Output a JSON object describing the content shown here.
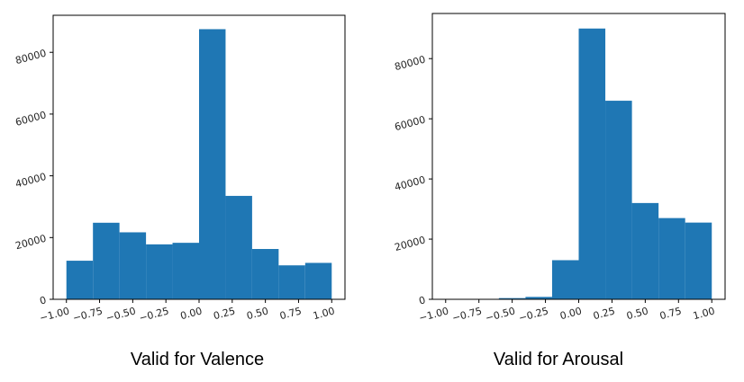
{
  "figure": {
    "bar_color": "#1f77b4",
    "axis_color": "#000000"
  },
  "chart_data": [
    {
      "type": "bar",
      "histogram": true,
      "caption": "Valid for Valence",
      "bin_edges": [
        -1.0,
        -0.8,
        -0.6,
        -0.4,
        -0.2,
        0.0,
        0.2,
        0.4,
        0.6,
        0.8,
        1.0
      ],
      "values": [
        12500,
        24800,
        21700,
        17800,
        18300,
        87500,
        33500,
        16300,
        11000,
        11800
      ],
      "xlim": [
        -1.1,
        1.1
      ],
      "ylim": [
        0,
        92000
      ],
      "xticks": [
        -1.0,
        -0.75,
        -0.5,
        -0.25,
        0.0,
        0.25,
        0.5,
        0.75,
        1.0
      ],
      "xtick_labels": [
        "−1.00",
        "−0.75",
        "−0.50",
        "−0.25",
        "0.00",
        "0.25",
        "0.50",
        "0.75",
        "1.00"
      ],
      "yticks": [
        0,
        20000,
        40000,
        60000,
        80000
      ],
      "ytick_labels": [
        "0",
        "20000",
        "40000",
        "60000",
        "80000"
      ],
      "grid": false
    },
    {
      "type": "bar",
      "histogram": true,
      "caption": "Valid for Arousal",
      "bin_edges": [
        -1.0,
        -0.8,
        -0.6,
        -0.4,
        -0.2,
        0.0,
        0.2,
        0.4,
        0.6,
        0.8,
        1.0
      ],
      "values": [
        50,
        150,
        400,
        800,
        13000,
        90000,
        66000,
        32000,
        27000,
        25500
      ],
      "xlim": [
        -1.1,
        1.1
      ],
      "ylim": [
        0,
        95000
      ],
      "xticks": [
        -1.0,
        -0.75,
        -0.5,
        -0.25,
        0.0,
        0.25,
        0.5,
        0.75,
        1.0
      ],
      "xtick_labels": [
        "−1.00",
        "−0.75",
        "−0.50",
        "−0.25",
        "0.00",
        "0.25",
        "0.50",
        "0.75",
        "1.00"
      ],
      "yticks": [
        0,
        20000,
        40000,
        60000,
        80000
      ],
      "ytick_labels": [
        "0",
        "20000",
        "40000",
        "60000",
        "80000"
      ],
      "grid": false
    }
  ]
}
